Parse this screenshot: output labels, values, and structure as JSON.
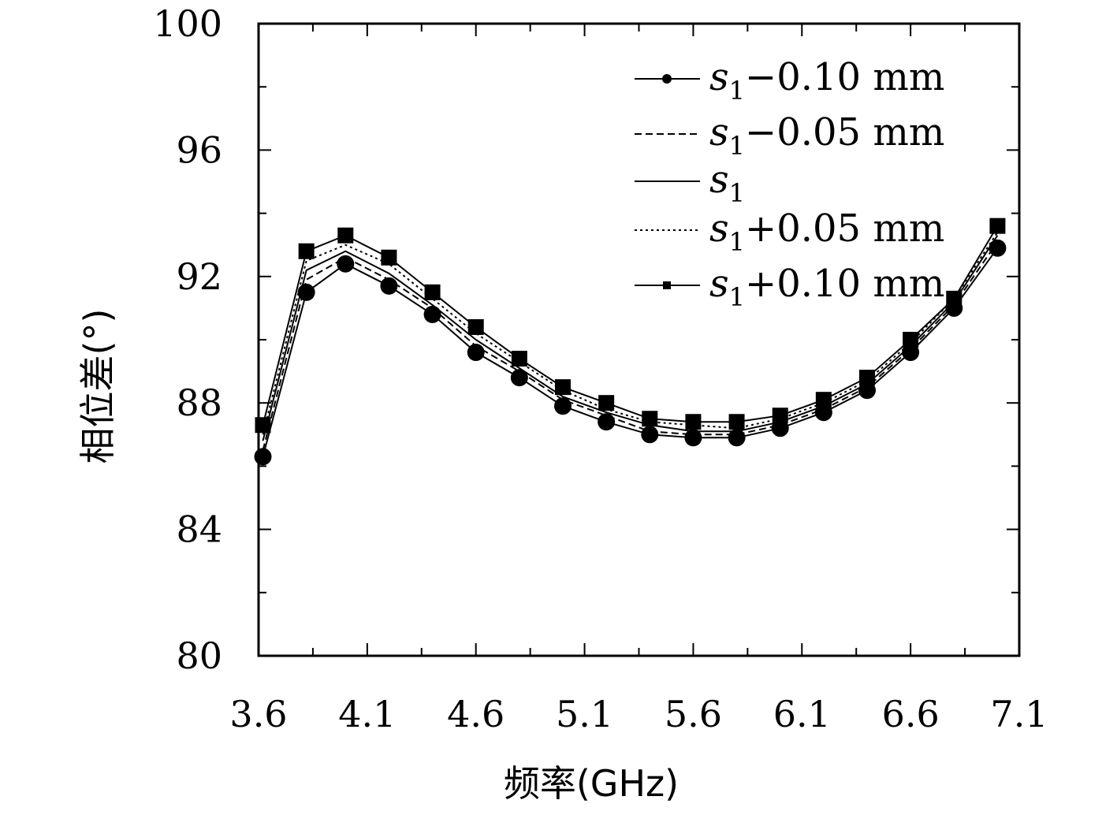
{
  "chart_data": {
    "type": "line",
    "xlabel": "频率(GHz)",
    "ylabel": "相位差(°)",
    "xlim": [
      3.6,
      7.1
    ],
    "ylim": [
      80,
      100
    ],
    "xticks": [
      "3.6",
      "4.1",
      "4.6",
      "5.1",
      "5.6",
      "6.1",
      "6.6",
      "7.1"
    ],
    "yticks": [
      "80",
      "84",
      "88",
      "92",
      "96",
      "100"
    ],
    "grid": false,
    "legend_position": "top-right",
    "x": [
      3.62,
      3.82,
      4.0,
      4.2,
      4.4,
      4.6,
      4.8,
      5.0,
      5.2,
      5.4,
      5.6,
      5.8,
      6.0,
      6.2,
      6.4,
      6.6,
      6.8,
      7.0
    ],
    "series": [
      {
        "name_var": "s",
        "name_sub": "1",
        "name_suffix": "−0.10 mm",
        "line_style": "solid",
        "marker": "circle",
        "values": [
          86.3,
          91.5,
          92.4,
          91.7,
          90.8,
          89.6,
          88.8,
          87.9,
          87.4,
          87.0,
          86.9,
          86.9,
          87.2,
          87.7,
          88.4,
          89.6,
          91.0,
          92.9
        ]
      },
      {
        "name_var": "s",
        "name_sub": "1",
        "name_suffix": "−0.05 mm",
        "line_style": "dashed",
        "marker": "none",
        "values": [
          86.5,
          91.9,
          92.6,
          91.9,
          91.0,
          89.8,
          89.0,
          88.1,
          87.6,
          87.1,
          87.0,
          87.0,
          87.3,
          87.8,
          88.5,
          89.7,
          91.1,
          93.1
        ]
      },
      {
        "name_var": "s",
        "name_sub": "1",
        "name_suffix": "",
        "line_style": "solid",
        "marker": "none",
        "values": [
          86.8,
          92.2,
          92.8,
          92.1,
          91.1,
          90.0,
          89.1,
          88.2,
          87.7,
          87.3,
          87.1,
          87.1,
          87.4,
          87.9,
          88.6,
          89.8,
          91.2,
          93.3
        ]
      },
      {
        "name_var": "s",
        "name_sub": "1",
        "name_suffix": "+0.05 mm",
        "line_style": "dotted",
        "marker": "none",
        "values": [
          87.0,
          92.5,
          93.0,
          92.4,
          91.3,
          90.2,
          89.3,
          88.4,
          87.8,
          87.4,
          87.3,
          87.2,
          87.5,
          88.0,
          88.7,
          89.9,
          91.3,
          93.4
        ]
      },
      {
        "name_var": "s",
        "name_sub": "1",
        "name_suffix": "+0.10 mm",
        "line_style": "solid",
        "marker": "square",
        "values": [
          87.3,
          92.8,
          93.3,
          92.6,
          91.5,
          90.4,
          89.4,
          88.5,
          88.0,
          87.5,
          87.4,
          87.4,
          87.6,
          88.1,
          88.8,
          90.0,
          91.3,
          93.6
        ]
      }
    ]
  }
}
